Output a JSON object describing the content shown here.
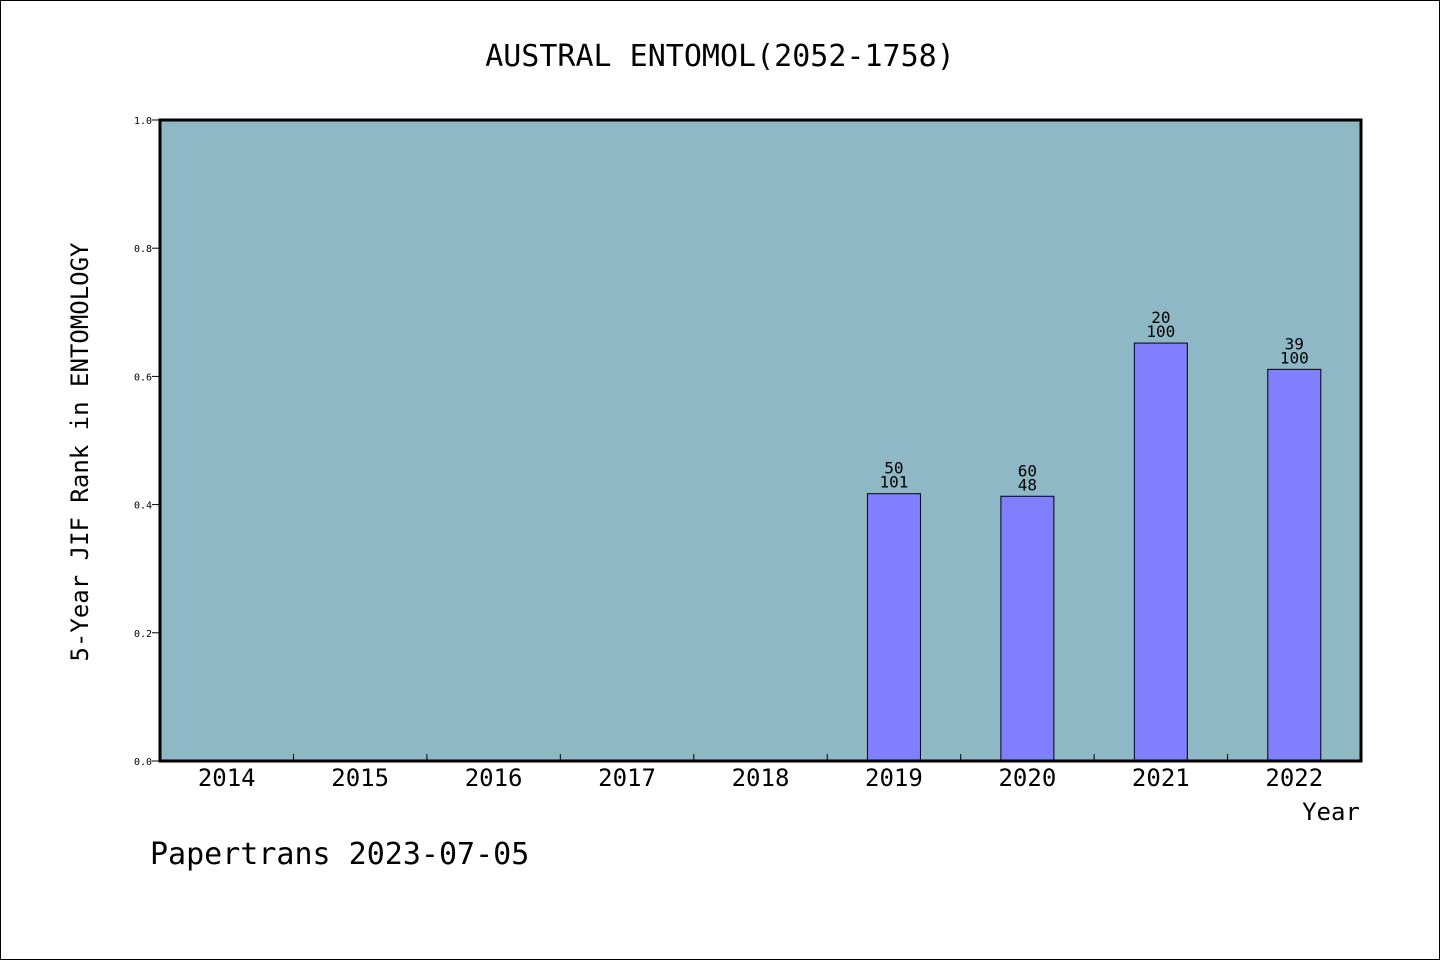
{
  "chart_data": {
    "type": "bar",
    "title": "AUSTRAL ENTOMOL(2052-1758)",
    "xlabel": "Year",
    "ylabel": "5-Year JIF Rank in ENTOMOLOGY",
    "ylim": [
      0.0,
      1.0
    ],
    "yticks": [
      "0.0",
      "0.2",
      "0.4",
      "0.6",
      "0.8",
      "1.0"
    ],
    "categories": [
      "2014",
      "2015",
      "2016",
      "2017",
      "2018",
      "2019",
      "2020",
      "2021",
      "2022"
    ],
    "values": [
      null,
      null,
      null,
      null,
      null,
      0.417,
      0.413,
      0.652,
      0.611
    ],
    "bar_labels": [
      null,
      null,
      null,
      null,
      null,
      {
        "top": "50",
        "bottom": "101"
      },
      {
        "top": "60",
        "bottom": "48"
      },
      {
        "top": "20",
        "bottom": "100"
      },
      {
        "top": "39",
        "bottom": "100"
      }
    ],
    "grid": false,
    "colors": {
      "plot_background": "#8fb8c6",
      "bar_fill": "#8080ff",
      "bar_stroke": "#000000"
    }
  },
  "footer": {
    "watermark": "Papertrans 2023-07-05"
  }
}
